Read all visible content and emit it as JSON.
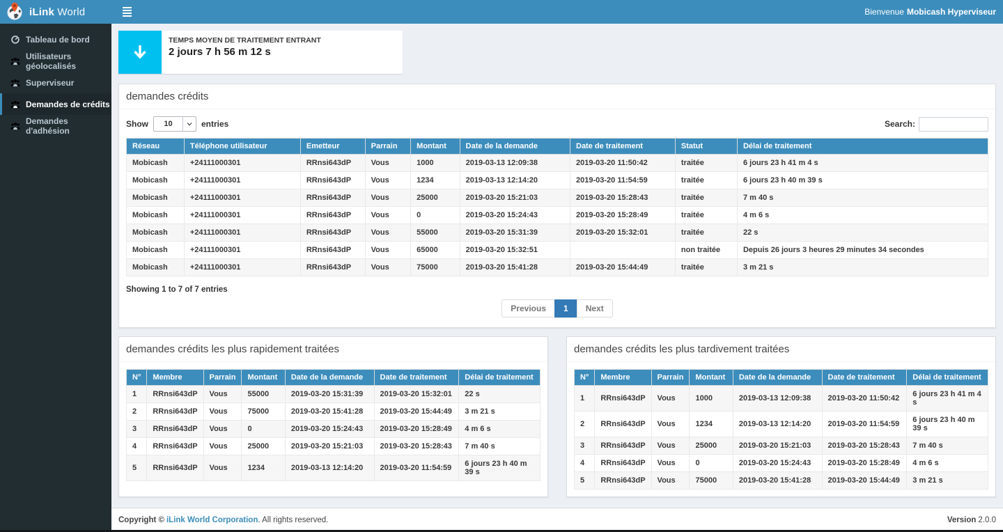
{
  "colors": {
    "accent_blue": "#3c8dbc",
    "info_box_aqua": "#00c0ef",
    "sidebar_dark": "#222d32",
    "active_page_blue": "#337ab7",
    "body_background": "#ecf0f5"
  },
  "brand": {
    "name_bold": "iLink",
    "name_light": "World"
  },
  "navbar": {
    "welcome_prefix": "Bienvenue",
    "welcome_user": "Mobicash Hyperviseur"
  },
  "sidebar": {
    "items": [
      {
        "label": "Tableau de bord",
        "icon": "dashboard-icon",
        "active": false
      },
      {
        "label": "Utilisateurs géolocalisés",
        "icon": "users-icon",
        "active": false
      },
      {
        "label": "Superviseur",
        "icon": "users-icon",
        "active": false
      },
      {
        "label": "Demandes de crédits",
        "icon": "users-icon",
        "active": true
      },
      {
        "label": "Demandes d'adhésion",
        "icon": "users-icon",
        "active": false
      }
    ]
  },
  "stat_card": {
    "icon": "arrow-down-icon",
    "label": "TEMPS MOYEN DE TRAITEMENT ENTRANT",
    "value": "2 jours 7 h 56 m 12 s"
  },
  "credits_panel": {
    "title": "demandes crédits",
    "show_label": "Show",
    "page_size": "10",
    "entries_label": "entries",
    "search_label": "Search:",
    "search_value": "",
    "columns": [
      "Réseau",
      "Téléphone utilisateur",
      "Emetteur",
      "Parrain",
      "Montant",
      "Date de la demande",
      "Date de traitement",
      "Statut",
      "Délai de traitement"
    ],
    "rows": [
      [
        "Mobicash",
        "+24111000301",
        "RRnsi643dP",
        "Vous",
        "1000",
        "2019-03-13 12:09:38",
        "2019-03-20 11:50:42",
        "traitée",
        "6 jours 23 h 41 m 4 s"
      ],
      [
        "Mobicash",
        "+24111000301",
        "RRnsi643dP",
        "Vous",
        "1234",
        "2019-03-13 12:14:20",
        "2019-03-20 11:54:59",
        "traitée",
        "6 jours 23 h 40 m 39 s"
      ],
      [
        "Mobicash",
        "+24111000301",
        "RRnsi643dP",
        "Vous",
        "25000",
        "2019-03-20 15:21:03",
        "2019-03-20 15:28:43",
        "traitée",
        "7 m 40 s"
      ],
      [
        "Mobicash",
        "+24111000301",
        "RRnsi643dP",
        "Vous",
        "0",
        "2019-03-20 15:24:43",
        "2019-03-20 15:28:49",
        "traitée",
        "4 m 6 s"
      ],
      [
        "Mobicash",
        "+24111000301",
        "RRnsi643dP",
        "Vous",
        "55000",
        "2019-03-20 15:31:39",
        "2019-03-20 15:32:01",
        "traitée",
        "22 s"
      ],
      [
        "Mobicash",
        "+24111000301",
        "RRnsi643dP",
        "Vous",
        "65000",
        "2019-03-20 15:32:51",
        "",
        "non traitée",
        "Depuis 26 jours 3 heures 29 minutes 34 secondes"
      ],
      [
        "Mobicash",
        "+24111000301",
        "RRnsi643dP",
        "Vous",
        "75000",
        "2019-03-20 15:41:28",
        "2019-03-20 15:44:49",
        "traitée",
        "3 m 21 s"
      ]
    ],
    "info": "Showing 1 to 7 of 7 entries",
    "pagination": {
      "previous": "Previous",
      "page": "1",
      "next": "Next"
    }
  },
  "fastest_panel": {
    "title": "demandes crédits les plus rapidement traitées",
    "columns": [
      "N°",
      "Membre",
      "Parrain",
      "Montant",
      "Date de la demande",
      "Date de traitement",
      "Délai de traitement"
    ],
    "rows": [
      [
        "1",
        "RRnsi643dP",
        "Vous",
        "55000",
        "2019-03-20 15:31:39",
        "2019-03-20 15:32:01",
        "22 s"
      ],
      [
        "2",
        "RRnsi643dP",
        "Vous",
        "75000",
        "2019-03-20 15:41:28",
        "2019-03-20 15:44:49",
        "3 m 21 s"
      ],
      [
        "3",
        "RRnsi643dP",
        "Vous",
        "0",
        "2019-03-20 15:24:43",
        "2019-03-20 15:28:49",
        "4 m 6 s"
      ],
      [
        "4",
        "RRnsi643dP",
        "Vous",
        "25000",
        "2019-03-20 15:21:03",
        "2019-03-20 15:28:43",
        "7 m 40 s"
      ],
      [
        "5",
        "RRnsi643dP",
        "Vous",
        "1234",
        "2019-03-13 12:14:20",
        "2019-03-20 11:54:59",
        "6 jours 23 h 40 m 39 s"
      ]
    ]
  },
  "slowest_panel": {
    "title": "demandes crédits les plus tardivement traitées",
    "columns": [
      "N°",
      "Membre",
      "Parrain",
      "Montant",
      "Date de la demande",
      "Date de traitement",
      "Délai de traitement"
    ],
    "rows": [
      [
        "1",
        "RRnsi643dP",
        "Vous",
        "1000",
        "2019-03-13 12:09:38",
        "2019-03-20 11:50:42",
        "6 jours 23 h 41 m 4 s"
      ],
      [
        "2",
        "RRnsi643dP",
        "Vous",
        "1234",
        "2019-03-13 12:14:20",
        "2019-03-20 11:54:59",
        "6 jours 23 h 40 m 39 s"
      ],
      [
        "3",
        "RRnsi643dP",
        "Vous",
        "25000",
        "2019-03-20 15:21:03",
        "2019-03-20 15:28:43",
        "7 m 40 s"
      ],
      [
        "4",
        "RRnsi643dP",
        "Vous",
        "0",
        "2019-03-20 15:24:43",
        "2019-03-20 15:28:49",
        "4 m 6 s"
      ],
      [
        "5",
        "RRnsi643dP",
        "Vous",
        "75000",
        "2019-03-20 15:41:28",
        "2019-03-20 15:44:49",
        "3 m 21 s"
      ]
    ]
  },
  "footer": {
    "copyright_bold": "Copyright ©",
    "company_link": "iLink World Corporation",
    "rights_text": ". All rights reserved.",
    "version_label": "Version",
    "version_value": "2.0.0"
  }
}
